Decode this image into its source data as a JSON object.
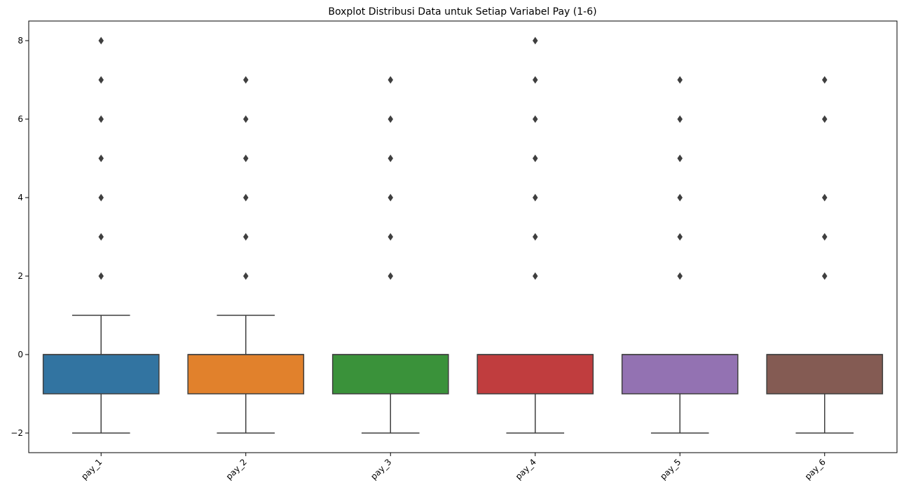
{
  "chart_data": {
    "type": "box",
    "title": "Boxplot Distribusi Data untuk Setiap Variabel Pay (1-6)",
    "xlabel": "",
    "ylabel": "",
    "ylim": [
      -2.5,
      8.5
    ],
    "yticks": [
      {
        "value": -2,
        "label": "−2"
      },
      {
        "value": 0,
        "label": "0"
      },
      {
        "value": 2,
        "label": "2"
      },
      {
        "value": 4,
        "label": "4"
      },
      {
        "value": 6,
        "label": "6"
      },
      {
        "value": 8,
        "label": "8"
      }
    ],
    "categories": [
      "pay_1",
      "pay_2",
      "pay_3",
      "pay_4",
      "pay_5",
      "pay_6"
    ],
    "series": [
      {
        "color": "#3274a1",
        "whisker_low": -2,
        "q1": -1,
        "median": 0,
        "q3": 0,
        "whisker_high": 1,
        "outliers": [
          2,
          3,
          4,
          5,
          6,
          7,
          8
        ]
      },
      {
        "color": "#e1812c",
        "whisker_low": -2,
        "q1": -1,
        "median": 0,
        "q3": 0,
        "whisker_high": 1,
        "outliers": [
          2,
          3,
          4,
          5,
          6,
          7
        ]
      },
      {
        "color": "#3a923a",
        "whisker_low": -2,
        "q1": -1,
        "median": 0,
        "q3": 0,
        "whisker_high": 0,
        "outliers": [
          2,
          3,
          4,
          5,
          6,
          7
        ]
      },
      {
        "color": "#c03d3e",
        "whisker_low": -2,
        "q1": -1,
        "median": 0,
        "q3": 0,
        "whisker_high": 0,
        "outliers": [
          2,
          3,
          4,
          5,
          6,
          7,
          8
        ]
      },
      {
        "color": "#9372b2",
        "whisker_low": -2,
        "q1": -1,
        "median": 0,
        "q3": 0,
        "whisker_high": 0,
        "outliers": [
          2,
          3,
          4,
          5,
          6,
          7
        ]
      },
      {
        "color": "#845b53",
        "whisker_low": -2,
        "q1": -1,
        "median": 0,
        "q3": 0,
        "whisker_high": 0,
        "outliers": [
          2,
          3,
          4,
          6,
          7
        ]
      }
    ],
    "grid": false,
    "legend": "none"
  }
}
